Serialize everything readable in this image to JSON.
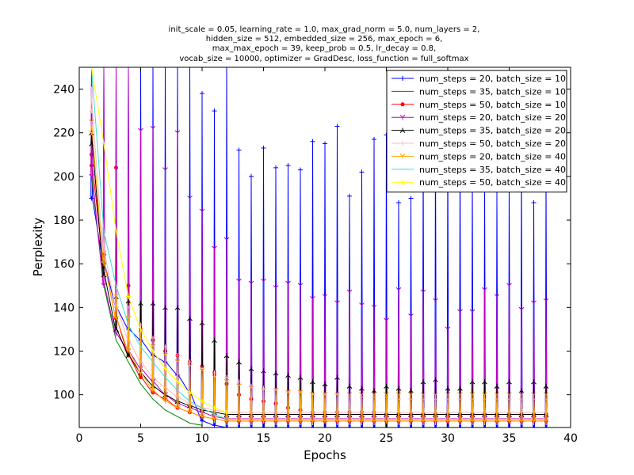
{
  "chart_data": {
    "type": "line",
    "title_lines": [
      "init_scale = 0.05, learning_rate = 1.0, max_grad_norm = 5.0, num_layers = 2,",
      "hidden_size = 512, embedded_size = 256, max_epoch = 6,",
      "max_max_epoch = 39, keep_prob = 0.5, lr_decay = 0.8,",
      "vocab_size = 10000, optimizer = GradDesc, loss_function = full_softmax"
    ],
    "xlabel": "Epochs",
    "ylabel": "Perplexity",
    "xlim": [
      0,
      40
    ],
    "ylim": [
      85,
      250
    ],
    "xticks": [
      0,
      5,
      10,
      15,
      20,
      25,
      30,
      35,
      40
    ],
    "yticks": [
      100,
      120,
      140,
      160,
      180,
      200,
      220,
      240
    ],
    "grid": false,
    "legend_position": "top-right",
    "series": [
      {
        "name": "num_steps = 20, batch_size = 10",
        "color": "#0000ff",
        "marker": "plus",
        "x": [
          1,
          2,
          3,
          4,
          5,
          6,
          7,
          8,
          9,
          10,
          11,
          12,
          13,
          14,
          15,
          16,
          17,
          18,
          19,
          20,
          21,
          22,
          23,
          24,
          25,
          26,
          27,
          28,
          29,
          30,
          31,
          32,
          33,
          34,
          35,
          36,
          37,
          38
        ],
        "y": [
          190,
          160,
          140,
          130,
          125,
          118,
          115,
          109,
          101,
          88,
          86,
          85,
          85,
          85,
          85,
          85,
          85,
          85,
          85,
          85,
          85,
          85,
          85,
          85,
          85,
          85,
          85,
          85,
          85,
          85,
          85,
          85,
          85,
          85,
          85,
          85,
          85,
          85
        ],
        "peaks": [
          250,
          250,
          250,
          250,
          250,
          250,
          250,
          250,
          250,
          238,
          230,
          250,
          212,
          200,
          213,
          204,
          205,
          203,
          216,
          215,
          223,
          191,
          202,
          217,
          219,
          188,
          190,
          210,
          215,
          212,
          210,
          200,
          195,
          193,
          200,
          205,
          188,
          200
        ]
      },
      {
        "name": "num_steps = 35, batch_size = 10",
        "color": "#008000",
        "marker": "none",
        "x": [
          1,
          2,
          3,
          4,
          5,
          6,
          7,
          8,
          9,
          10
        ],
        "y": [
          200,
          150,
          125,
          115,
          105,
          98,
          93,
          90,
          87,
          86
        ],
        "peaks": []
      },
      {
        "name": "num_steps = 50, batch_size = 10",
        "color": "#ff0000",
        "marker": "dot",
        "x": [
          1,
          2,
          3,
          4,
          5,
          6,
          7,
          8,
          9,
          10,
          11,
          12,
          13,
          14,
          15,
          16,
          17,
          18,
          19,
          20,
          21,
          22,
          23,
          24,
          25,
          26,
          27,
          28,
          29,
          30,
          31,
          32,
          33,
          34,
          35,
          36,
          37,
          38
        ],
        "y": [
          205,
          160,
          135,
          118,
          108,
          101,
          98,
          94,
          92,
          90,
          89,
          88,
          88,
          88,
          88,
          88,
          88,
          88,
          88,
          88,
          88,
          88,
          88,
          88,
          88,
          88,
          88,
          88,
          88,
          88,
          88,
          88,
          88,
          88,
          88,
          88,
          88,
          88
        ],
        "peaks": [
          210,
          165,
          204,
          150,
          130,
          125,
          120,
          118,
          115,
          113,
          110,
          105,
          100,
          98,
          97,
          96,
          94,
          93,
          92,
          92,
          92,
          92,
          92,
          92,
          91,
          91,
          91,
          91,
          91,
          91,
          91,
          91,
          91,
          91,
          91,
          91,
          91,
          91
        ]
      },
      {
        "name": "num_steps = 20, batch_size = 20",
        "color": "#bf00bf",
        "marker": "tri",
        "x": [
          1,
          2,
          3,
          4,
          5,
          6,
          7,
          8,
          9,
          10,
          11,
          12,
          13,
          14,
          15,
          16,
          17,
          18,
          19,
          20,
          21,
          22,
          23,
          24,
          25,
          26,
          27,
          28,
          29,
          30,
          31,
          32,
          33,
          34,
          35,
          36,
          37,
          38
        ],
        "y": [
          200,
          150,
          128,
          120,
          112,
          106,
          100,
          96,
          94,
          92,
          90,
          89,
          89,
          89,
          89,
          89,
          89,
          89,
          89,
          89,
          89,
          89,
          89,
          89,
          89,
          89,
          89,
          89,
          89,
          89,
          89,
          89,
          89,
          89,
          89,
          89,
          89,
          89
        ],
        "peaks": [
          250,
          250,
          250,
          250,
          221,
          222,
          203,
          220,
          190,
          184,
          167,
          171,
          152,
          151,
          152,
          149,
          151,
          150,
          144,
          145,
          142,
          147,
          141,
          140,
          134,
          148,
          136,
          147,
          143,
          130,
          138,
          138,
          148,
          145,
          150,
          139,
          142,
          143
        ]
      },
      {
        "name": "num_steps = 35, batch_size = 20",
        "color": "#000000",
        "marker": "tri-down",
        "x": [
          1,
          2,
          3,
          4,
          5,
          6,
          7,
          8,
          9,
          10,
          11,
          12,
          13,
          14,
          15,
          16,
          17,
          18,
          19,
          20,
          21,
          22,
          23,
          24,
          25,
          26,
          27,
          28,
          29,
          30,
          31,
          32,
          33,
          34,
          35,
          36,
          37,
          38
        ],
        "y": [
          215,
          155,
          130,
          118,
          110,
          104,
          100,
          97,
          95,
          93,
          92,
          91,
          91,
          91,
          91,
          91,
          91,
          91,
          91,
          91,
          91,
          91,
          91,
          91,
          91,
          91,
          91,
          91,
          91,
          91,
          91,
          91,
          91,
          91,
          91,
          91,
          91,
          91
        ],
        "peaks": [
          220,
          165,
          145,
          143,
          142,
          142,
          140,
          140,
          135,
          133,
          125,
          118,
          115,
          112,
          111,
          110,
          109,
          108,
          106,
          105,
          108,
          104,
          103,
          102,
          104,
          103,
          102,
          106,
          107,
          103,
          103,
          106,
          106,
          104,
          106,
          102,
          106,
          104
        ]
      },
      {
        "name": "num_steps = 50, batch_size = 20",
        "color": "#ffb6c1",
        "marker": "plus",
        "x": [
          1,
          2,
          3,
          4,
          5,
          6,
          7,
          8,
          9,
          10,
          11,
          12,
          13,
          14,
          15,
          16,
          17,
          18,
          19,
          20,
          21,
          22,
          23,
          24,
          25,
          26,
          27,
          28,
          29,
          30,
          31,
          32,
          33,
          34,
          35,
          36,
          37,
          38
        ],
        "y": [
          230,
          165,
          140,
          125,
          115,
          108,
          103,
          99,
          96,
          94,
          93,
          92,
          92,
          92,
          92,
          92,
          92,
          92,
          92,
          92,
          92,
          92,
          92,
          92,
          92,
          92,
          92,
          92,
          92,
          92,
          92,
          92,
          92,
          92,
          92,
          92,
          92,
          92
        ],
        "peaks": [
          240,
          175,
          150,
          140,
          132,
          126,
          122,
          118,
          115,
          112,
          110,
          108,
          106,
          104,
          103,
          102,
          101,
          101,
          100,
          100,
          100,
          99,
          99,
          99,
          99,
          98,
          98,
          98,
          98,
          98,
          98,
          98,
          98,
          98,
          98,
          98,
          98,
          98
        ]
      },
      {
        "name": "num_steps = 20, batch_size = 40",
        "color": "#ffa500",
        "marker": "tri",
        "x": [
          1,
          2,
          3,
          4,
          5,
          6,
          7,
          8,
          9,
          10,
          11,
          12,
          13,
          14,
          15,
          16,
          17,
          18,
          19,
          20,
          21,
          22,
          23,
          24,
          25,
          26,
          27,
          28,
          29,
          30,
          31,
          32,
          33,
          34,
          35,
          36,
          37,
          38
        ],
        "y": [
          220,
          160,
          135,
          120,
          110,
          102,
          97,
          94,
          92,
          90,
          89,
          88,
          88,
          88,
          88,
          88,
          88,
          88,
          88,
          88,
          88,
          88,
          88,
          88,
          88,
          88,
          88,
          88,
          88,
          88,
          88,
          88,
          88,
          88,
          88,
          88,
          88,
          88
        ],
        "peaks": [
          225,
          165,
          145,
          135,
          128,
          122,
          118,
          115,
          113,
          111,
          108,
          106,
          104,
          103,
          102,
          102,
          101,
          101,
          100,
          100,
          100,
          100,
          100,
          100,
          100,
          100,
          100,
          100,
          100,
          100,
          100,
          100,
          100,
          100,
          100,
          100,
          100,
          100
        ]
      },
      {
        "name": "num_steps = 35, batch_size = 40",
        "color": "#40e0d0",
        "marker": "none",
        "x": [
          1,
          2,
          3,
          4,
          5,
          6,
          7,
          8,
          9,
          10,
          11,
          12
        ],
        "y": [
          250,
          175,
          150,
          132,
          122,
          115,
          108,
          102,
          97,
          94,
          91,
          89
        ],
        "peaks": []
      },
      {
        "name": "num_steps = 50, batch_size = 40",
        "color": "#ffff00",
        "marker": "plus",
        "x": [
          1,
          2,
          3,
          4,
          5,
          6,
          7,
          8,
          9,
          10,
          11,
          12
        ],
        "y": [
          250,
          215,
          175,
          145,
          130,
          120,
          112,
          106,
          101,
          97,
          94,
          92
        ],
        "peaks": []
      }
    ]
  }
}
